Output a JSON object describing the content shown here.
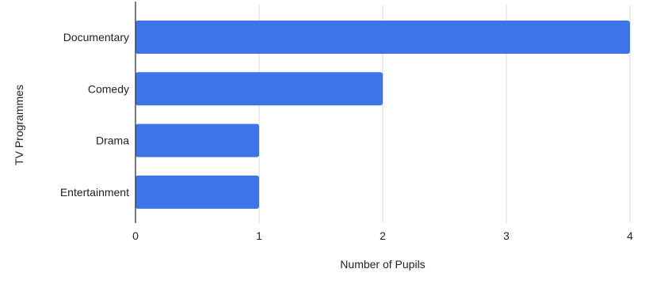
{
  "chart_data": {
    "type": "bar",
    "orientation": "horizontal",
    "categories": [
      "Documentary",
      "Comedy",
      "Drama",
      "Entertainment"
    ],
    "values": [
      4,
      2,
      1,
      1
    ],
    "xlabel": "Number of Pupils",
    "ylabel": "TV Programmes",
    "xlim": [
      0,
      4
    ],
    "xticks": [
      "0",
      "1",
      "2",
      "3",
      "4"
    ],
    "grid": "vertical",
    "legend": "none",
    "bar_color": "#3f73e8",
    "grid_color": "#d9d9d9",
    "axis_color": "#333333"
  }
}
